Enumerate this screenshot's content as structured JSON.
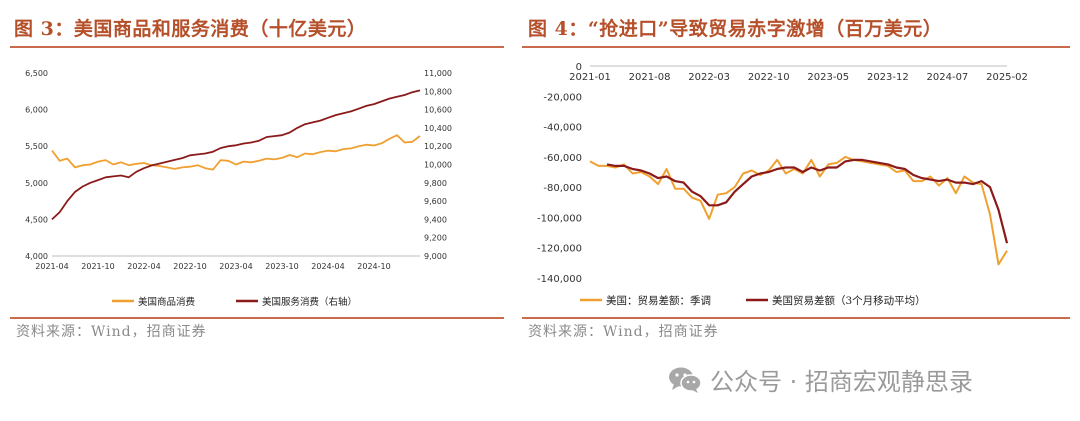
{
  "brand_text": "公众号 · 招商宏观静思录",
  "colors": {
    "accent": "#b5502a",
    "goods": "#f0a030",
    "services": "#8b1a1a"
  },
  "charts": [
    {
      "title": "图 3：美国商品和服务消费（十亿美元）",
      "source": "资料来源：Wind，招商证券",
      "chart_data": {
        "type": "line",
        "x_tick_labels": [
          "2021-04",
          "2021-10",
          "2022-04",
          "2022-10",
          "2023-04",
          "2023-10",
          "2024-04",
          "2024-10"
        ],
        "x_range": [
          0,
          48
        ],
        "y_left": {
          "ticks": [
            "4,000",
            "4,500",
            "5,000",
            "5,500",
            "6,000",
            "6,500"
          ],
          "range": [
            4000,
            6500
          ]
        },
        "y_right": {
          "ticks": [
            "9,000",
            "9,200",
            "9,400",
            "9,600",
            "9,800",
            "10,000",
            "10,200",
            "10,400",
            "10,600",
            "10,800",
            "11,000"
          ],
          "range": [
            9000,
            11000
          ]
        },
        "series": [
          {
            "name": "美国商品消费",
            "axis": "left",
            "color": "#f0a030",
            "x": [
              0,
              1,
              2,
              3,
              4,
              5,
              6,
              7,
              8,
              9,
              10,
              11,
              12,
              13,
              14,
              15,
              16,
              17,
              18,
              19,
              20,
              21,
              22,
              23,
              24,
              25,
              26,
              27,
              28,
              29,
              30,
              31,
              32,
              33,
              34,
              35,
              36,
              37,
              38,
              39,
              40,
              41,
              42,
              43,
              44,
              45,
              46,
              47,
              48
            ],
            "values": [
              5440,
              5300,
              5330,
              5210,
              5240,
              5250,
              5290,
              5310,
              5250,
              5280,
              5240,
              5260,
              5270,
              5240,
              5230,
              5210,
              5190,
              5210,
              5220,
              5240,
              5200,
              5180,
              5310,
              5300,
              5250,
              5290,
              5280,
              5300,
              5330,
              5320,
              5340,
              5380,
              5350,
              5400,
              5390,
              5420,
              5440,
              5430,
              5460,
              5470,
              5500,
              5520,
              5510,
              5540,
              5600,
              5650,
              5550,
              5560,
              5640
            ]
          },
          {
            "name": "美国服务消费（右轴）",
            "axis": "right",
            "color": "#8b1a1a",
            "x": [
              0,
              1,
              2,
              3,
              4,
              5,
              6,
              7,
              8,
              9,
              10,
              11,
              12,
              13,
              14,
              15,
              16,
              17,
              18,
              19,
              20,
              21,
              22,
              23,
              24,
              25,
              26,
              27,
              28,
              29,
              30,
              31,
              32,
              33,
              34,
              35,
              36,
              37,
              38,
              39,
              40,
              41,
              42,
              43,
              44,
              45,
              46,
              47,
              48
            ],
            "values": [
              9400,
              9480,
              9600,
              9700,
              9760,
              9800,
              9830,
              9860,
              9870,
              9880,
              9860,
              9920,
              9960,
              9990,
              10010,
              10030,
              10050,
              10070,
              10100,
              10110,
              10120,
              10140,
              10180,
              10200,
              10210,
              10230,
              10240,
              10260,
              10300,
              10310,
              10320,
              10350,
              10400,
              10440,
              10460,
              10480,
              10510,
              10540,
              10560,
              10580,
              10610,
              10640,
              10660,
              10690,
              10720,
              10740,
              10760,
              10790,
              10810
            ]
          }
        ]
      }
    },
    {
      "title": "图 4：“抢进口”导致贸易赤字激增（百万美元）",
      "source": "资料来源：Wind，招商证券",
      "chart_data": {
        "type": "line",
        "x_tick_labels": [
          "2021-01",
          "2021-08",
          "2022-03",
          "2022-10",
          "2023-05",
          "2023-12",
          "2024-07",
          "2025-02"
        ],
        "x_range": [
          0,
          49
        ],
        "y": {
          "ticks": [
            "0",
            "-20,000",
            "-40,000",
            "-60,000",
            "-80,000",
            "-100,000",
            "-120,000",
            "-140,000"
          ],
          "range": [
            -140000,
            0
          ]
        },
        "series": [
          {
            "name": "美国：贸易差额：季调",
            "color": "#f0a030",
            "x": [
              0,
              1,
              2,
              3,
              4,
              5,
              6,
              7,
              8,
              9,
              10,
              11,
              12,
              13,
              14,
              15,
              16,
              17,
              18,
              19,
              20,
              21,
              22,
              23,
              24,
              25,
              26,
              27,
              28,
              29,
              30,
              31,
              32,
              33,
              34,
              35,
              36,
              37,
              38,
              39,
              40,
              41,
              42,
              43,
              44,
              45,
              46,
              47,
              48,
              49
            ],
            "values": [
              -63000,
              -66000,
              -66000,
              -67000,
              -65000,
              -71000,
              -70000,
              -73000,
              -78000,
              -68000,
              -81000,
              -81000,
              -87000,
              -89000,
              -101000,
              -85000,
              -84000,
              -80000,
              -71000,
              -69000,
              -72000,
              -69000,
              -62000,
              -71000,
              -68000,
              -71000,
              -62000,
              -73000,
              -65000,
              -64000,
              -60000,
              -62000,
              -63000,
              -64000,
              -65000,
              -66000,
              -70000,
              -69000,
              -76000,
              -76000,
              -73000,
              -79000,
              -74000,
              -84000,
              -73000,
              -77000,
              -78000,
              -98000,
              -131000,
              -122000
            ]
          },
          {
            "name": "美国贸易差额（3个月移动平均）",
            "color": "#8b1a1a",
            "x": [
              2,
              3,
              4,
              5,
              6,
              7,
              8,
              9,
              10,
              11,
              12,
              13,
              14,
              15,
              16,
              17,
              18,
              19,
              20,
              21,
              22,
              23,
              24,
              25,
              26,
              27,
              28,
              29,
              30,
              31,
              32,
              33,
              34,
              35,
              36,
              37,
              38,
              39,
              40,
              41,
              42,
              43,
              44,
              45,
              46,
              47,
              48,
              49
            ],
            "values": [
              -65000,
              -66000,
              -66000,
              -68000,
              -69000,
              -71000,
              -74000,
              -73000,
              -76000,
              -77000,
              -83000,
              -86000,
              -92000,
              -92000,
              -90000,
              -83000,
              -78000,
              -73000,
              -71000,
              -70000,
              -68000,
              -67000,
              -67000,
              -70000,
              -67000,
              -69000,
              -67000,
              -67000,
              -63000,
              -62000,
              -62000,
              -63000,
              -64000,
              -65000,
              -67000,
              -68000,
              -72000,
              -74000,
              -75000,
              -76000,
              -75000,
              -77000,
              -77000,
              -78000,
              -76000,
              -80000,
              -95000,
              -117000
            ]
          }
        ]
      }
    }
  ]
}
